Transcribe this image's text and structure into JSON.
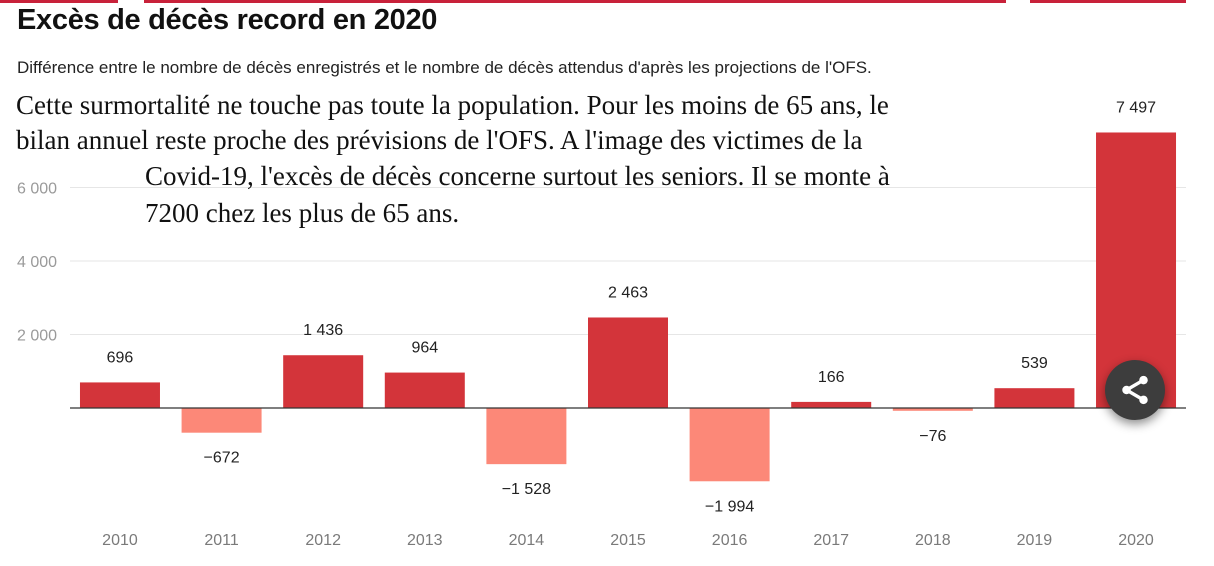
{
  "header": {
    "title": "Excès de décès record en 2020",
    "subtitle": "Différence entre le nombre de décès enregistrés et le nombre de décès attendus d'après les projections de l'OFS."
  },
  "overlay_text": {
    "line1": "Cette surmortalité ne touche pas toute la population. Pour les moins de 65 ans, le",
    "line2": "bilan annuel reste proche des prévisions de l'OFS. A l'image des victimes de la",
    "line3": "Covid-19, l'excès de décès concerne surtout les seniors. Il se monte à",
    "line4": "7200 chez les plus de 65 ans."
  },
  "share_button": {
    "icon": "share-icon"
  },
  "colors": {
    "positive": "#d3343a",
    "negative": "#fc8878",
    "accent_bar": "#c8213a",
    "grid": "#e6e6e6",
    "axis_label": "#9a9a9a",
    "tick_label": "#7a7a7a"
  },
  "chart_data": {
    "type": "bar",
    "title": "Excès de décès record en 2020",
    "subtitle": "Différence entre le nombre de décès enregistrés et le nombre de décès attendus d'après les projections de l'OFS.",
    "xlabel": "",
    "ylabel": "",
    "categories": [
      "2010",
      "2011",
      "2012",
      "2013",
      "2014",
      "2015",
      "2016",
      "2017",
      "2018",
      "2019",
      "2020"
    ],
    "values": [
      696,
      -672,
      1436,
      964,
      -1528,
      2463,
      -1994,
      166,
      -76,
      539,
      7497
    ],
    "value_labels": [
      "696",
      "−672",
      "1 436",
      "964",
      "−1 528",
      "2 463",
      "−1 994",
      "166",
      "−76",
      "539",
      "7 497"
    ],
    "yticks": [
      2000,
      4000,
      6000
    ],
    "ytick_labels": [
      "2 000",
      "4 000",
      "6 000"
    ],
    "ylim": [
      -2600,
      8300
    ],
    "grid": true,
    "legend": "none"
  }
}
